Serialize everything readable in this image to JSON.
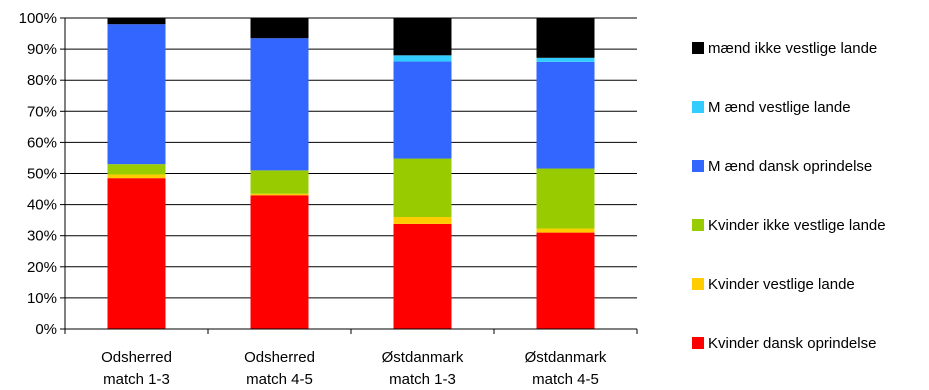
{
  "chart_data": {
    "type": "bar",
    "stacked": true,
    "categories": [
      [
        "Odsherred",
        "match 1-3"
      ],
      [
        "Odsherred",
        "match 4-5"
      ],
      [
        "Østdanmark",
        "match 1-3"
      ],
      [
        "Østdanmark",
        "match 4-5"
      ]
    ],
    "ylim": [
      0,
      100
    ],
    "yticks": [
      "0%",
      "10%",
      "20%",
      "30%",
      "40%",
      "50%",
      "60%",
      "70%",
      "80%",
      "90%",
      "100%"
    ],
    "grid": true,
    "legend_position": "right",
    "series": [
      {
        "name": "Kvinder dansk oprindelse",
        "color": "#ff0000",
        "values": [
          48.5,
          43.0,
          33.8,
          31.0
        ]
      },
      {
        "name": "Kvinder vestlige lande",
        "color": "#ffcc00",
        "values": [
          1.2,
          0.5,
          2.2,
          1.3
        ]
      },
      {
        "name": "Kvinder ikke vestlige lande",
        "color": "#99cc00",
        "values": [
          3.3,
          7.5,
          18.8,
          19.3
        ]
      },
      {
        "name": "M ænd dansk oprindelse",
        "color": "#3366ff",
        "values": [
          45.0,
          42.5,
          31.2,
          34.3
        ]
      },
      {
        "name": "M ænd vestlige lande",
        "color": "#33ccff",
        "values": [
          0.0,
          0.0,
          2.0,
          1.3
        ]
      },
      {
        "name": "mænd ikke vestlige lande",
        "color": "#000000",
        "values": [
          2.0,
          6.5,
          12.0,
          12.8
        ]
      }
    ]
  }
}
